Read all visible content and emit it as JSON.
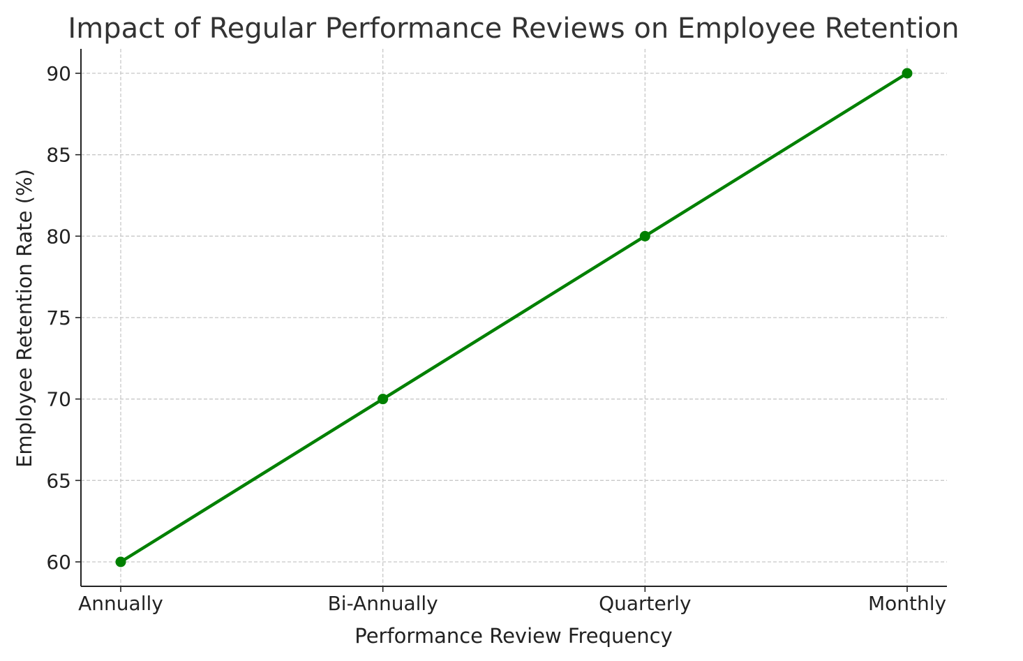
{
  "chart_data": {
    "type": "line",
    "title": "Impact of Regular Performance Reviews on Employee Retention",
    "xlabel": "Performance Review Frequency",
    "ylabel": "Employee Retention Rate (%)",
    "categories": [
      "Annually",
      "Bi-Annually",
      "Quarterly",
      "Monthly"
    ],
    "values": [
      60,
      70,
      80,
      90
    ],
    "ylim": [
      58.5,
      91.5
    ],
    "yticks": [
      60,
      65,
      70,
      75,
      80,
      85,
      90
    ],
    "grid": true,
    "marker": "circle",
    "color": "#008000"
  }
}
